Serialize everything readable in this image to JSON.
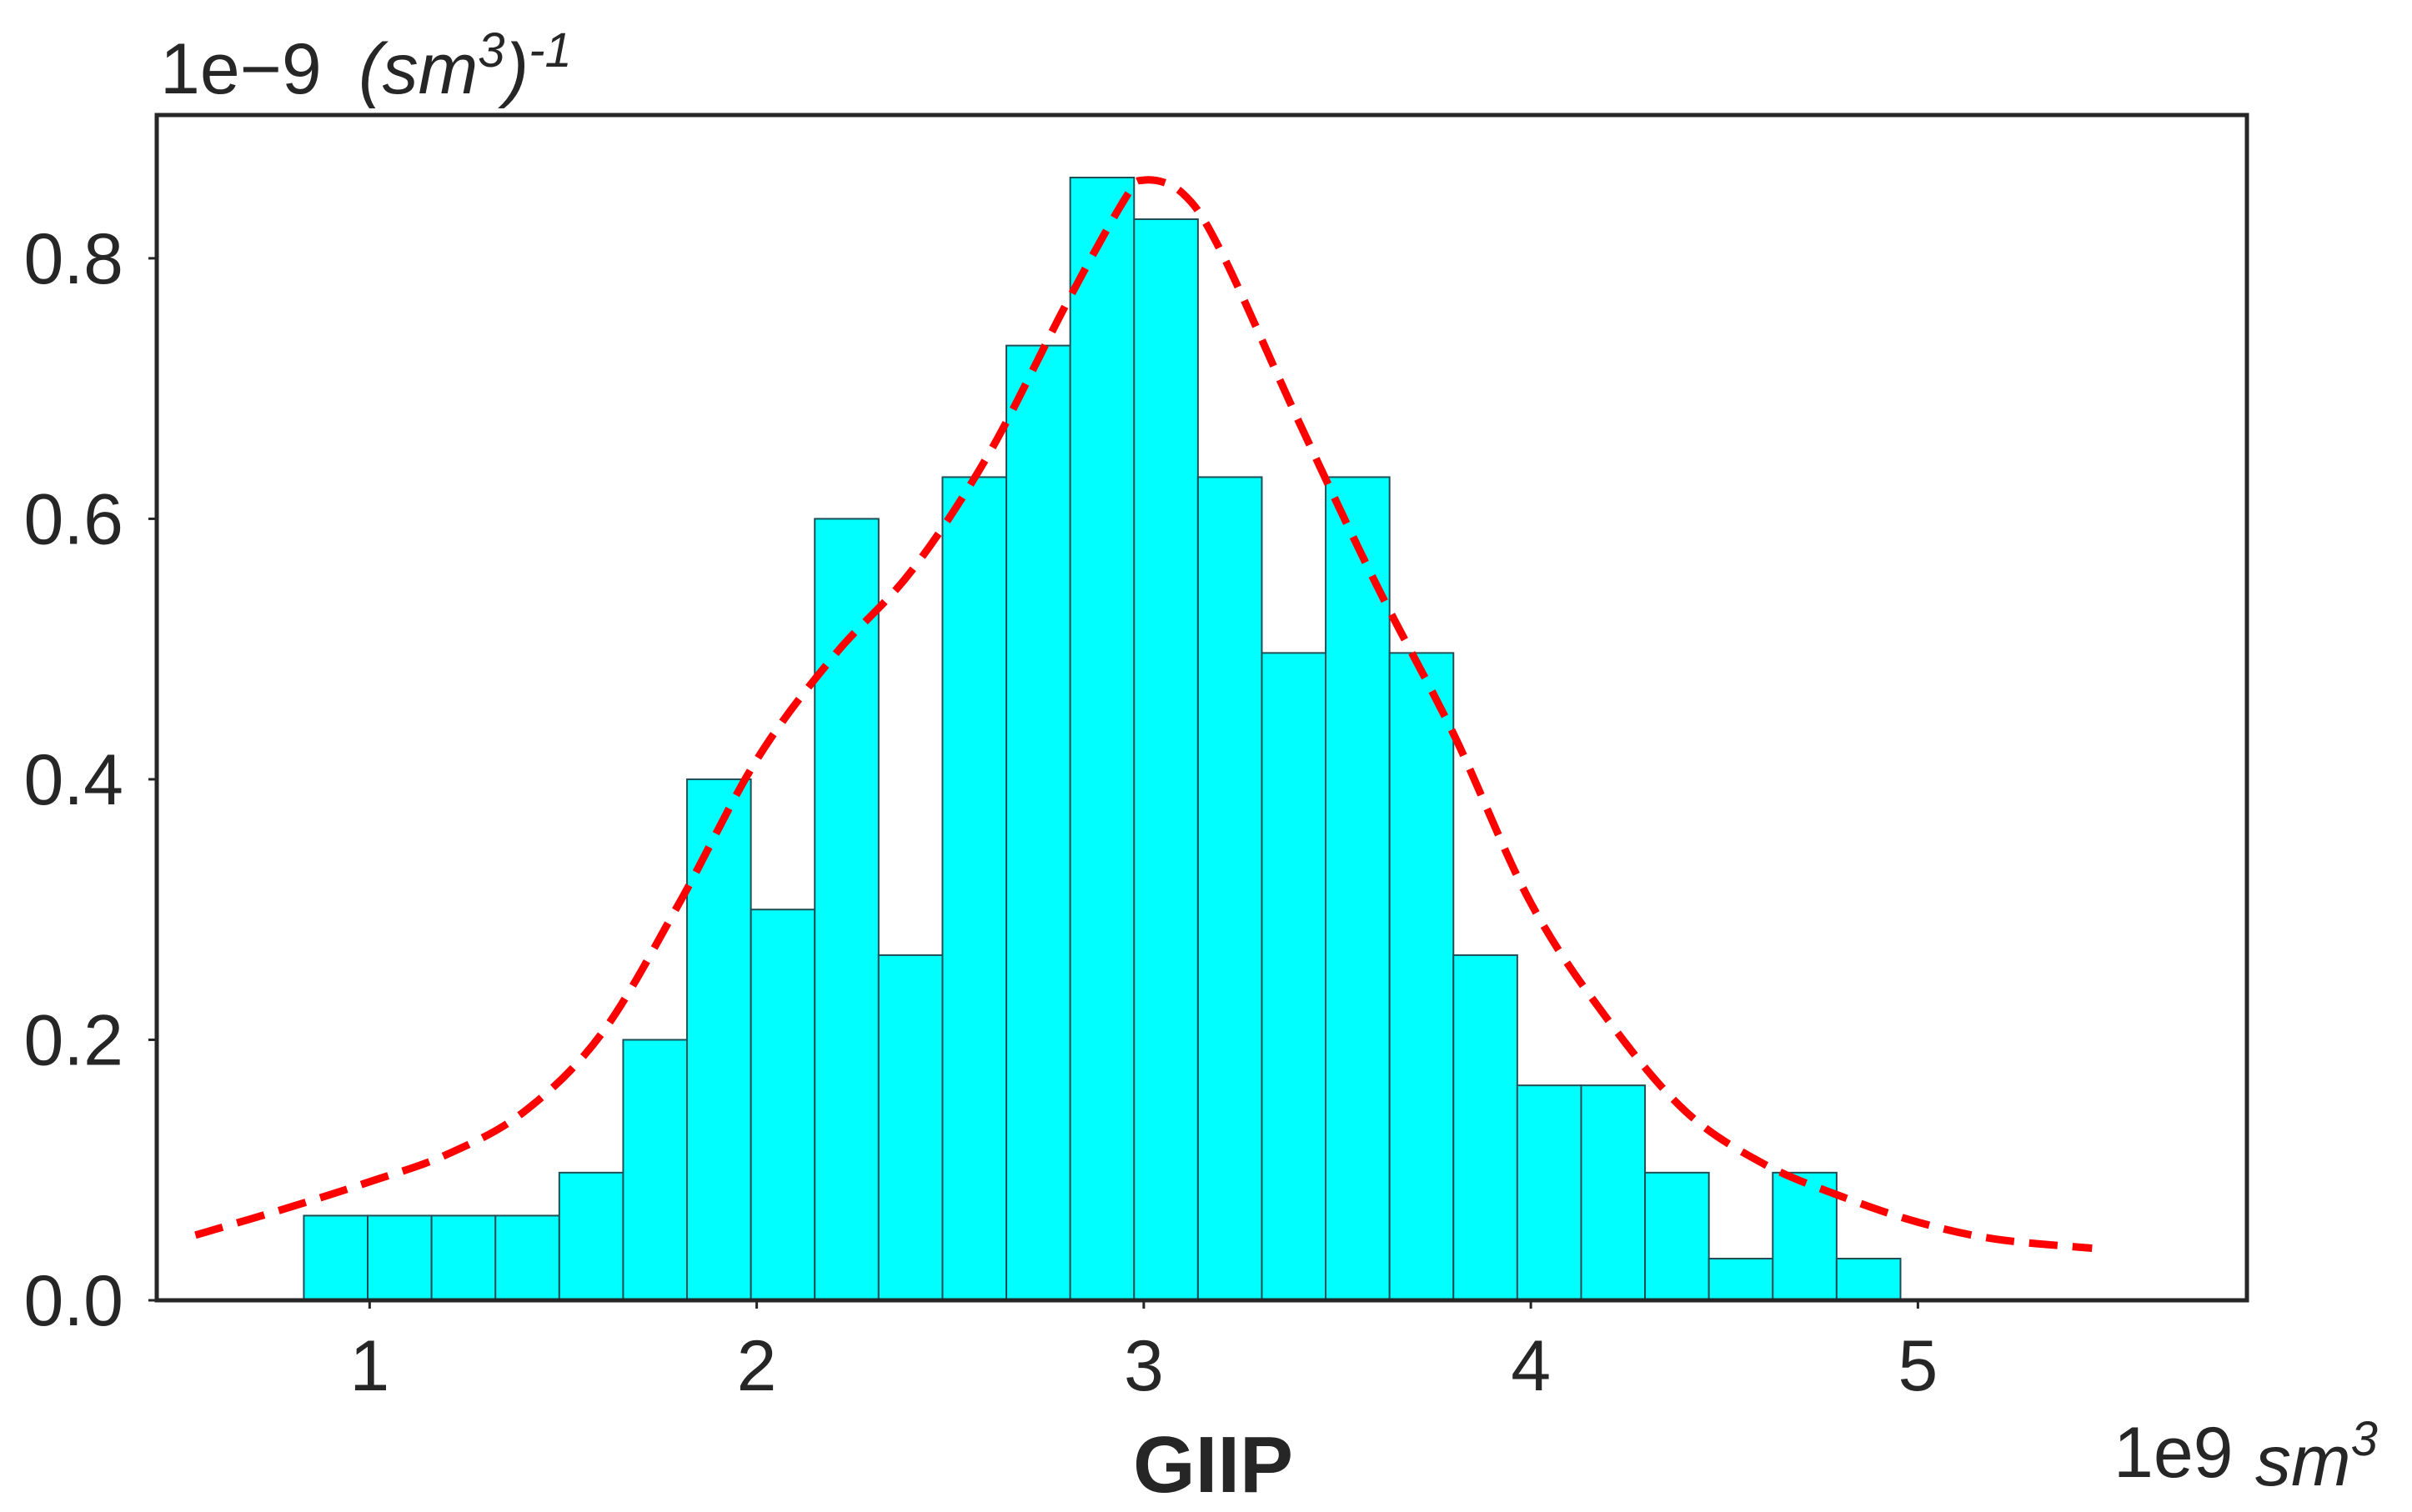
{
  "chart_data": {
    "type": "bar",
    "subtype": "histogram-with-fitted-density",
    "xlabel": "GIIP",
    "x_offset_label": "1e9",
    "x_unit": "sm",
    "x_unit_superscript": "3",
    "y_offset_label": "1e−9",
    "y_unit": "(sm",
    "y_unit_superscript": "3",
    "y_unit_close": ")",
    "y_unit_exponent": "-1",
    "xlim": [
      0.45,
      5.85
    ],
    "ylim": [
      0.0,
      0.91
    ],
    "x_ticks": [
      1,
      2,
      3,
      4,
      5
    ],
    "x_tick_labels": [
      "1",
      "2",
      "3",
      "4",
      "5"
    ],
    "y_ticks": [
      0.0,
      0.2,
      0.4,
      0.6,
      0.8
    ],
    "y_tick_labels": [
      "0.0",
      "0.2",
      "0.4",
      "0.6",
      "0.8"
    ],
    "grid": false,
    "bin_edges": [
      0.83,
      0.995,
      1.16,
      1.325,
      1.49,
      1.655,
      1.82,
      1.985,
      2.15,
      2.315,
      2.48,
      2.645,
      2.81,
      2.975,
      3.14,
      3.305,
      3.47,
      3.635,
      3.8,
      3.965,
      4.13,
      4.295,
      4.46,
      4.625,
      4.79,
      4.955
    ],
    "series": [
      {
        "type": "histogram",
        "values": [
          0.065,
          0.065,
          0.065,
          0.065,
          0.098,
          0.2,
          0.4,
          0.3,
          0.6,
          0.265,
          0.632,
          0.733,
          0.862,
          0.83,
          0.632,
          0.497,
          0.632,
          0.497,
          0.265,
          0.165,
          0.165,
          0.098,
          0.032,
          0.098,
          0.032
        ],
        "color": "#00FFFF",
        "edge_color": "#1f4f55"
      },
      {
        "type": "line",
        "style": "dashed",
        "color": "#FF0000",
        "x": [
          0.55,
          0.8,
          1.0,
          1.2,
          1.4,
          1.6,
          1.8,
          2.0,
          2.2,
          2.4,
          2.6,
          2.8,
          2.95,
          3.0,
          3.1,
          3.2,
          3.4,
          3.6,
          3.8,
          4.0,
          4.2,
          4.4,
          4.6,
          4.8,
          5.0,
          5.2,
          5.45
        ],
        "values": [
          0.05,
          0.072,
          0.091,
          0.112,
          0.145,
          0.205,
          0.305,
          0.415,
          0.495,
          0.56,
          0.65,
          0.765,
          0.845,
          0.86,
          0.85,
          0.805,
          0.675,
          0.55,
          0.435,
          0.305,
          0.215,
          0.145,
          0.105,
          0.08,
          0.06,
          0.047,
          0.04
        ]
      }
    ]
  }
}
